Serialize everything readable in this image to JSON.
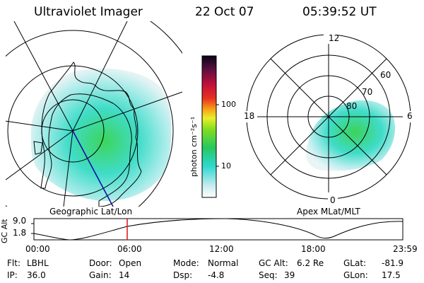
{
  "header": {
    "title": "Ultraviolet Imager",
    "date": "22 Oct 07",
    "time": "05:39:52 UT"
  },
  "colorbar": {
    "unit_label": "photon cm⁻²s⁻¹",
    "ticks": [
      "100",
      "10"
    ],
    "scale": "log"
  },
  "polar_plot": {
    "mlt_labels": [
      "12",
      "18",
      "6",
      "0"
    ],
    "lat_labels": [
      "60",
      "70",
      "80"
    ]
  },
  "labels": {
    "left_caption": "Geographic Lat/Lon",
    "right_caption": "Apex MLat/MLT"
  },
  "altitude_plot": {
    "axis_label": "GC Alt",
    "y_ticks": [
      "9.0",
      "1.8"
    ],
    "x_ticks": [
      "00:00",
      "06:00",
      "12:00",
      "18:00",
      "23:59"
    ],
    "marker_time": "05:39:52",
    "marker_color": "#e01010"
  },
  "info_panel": {
    "flt_label": "Flt:",
    "flt_value": "LBHL",
    "ip_label": "IP:",
    "ip_value": "36.0",
    "door_label": "Door:",
    "door_value": "Open",
    "gain_label": "Gain:",
    "gain_value": "14",
    "mode_label": "Mode:",
    "mode_value": "Normal",
    "dsp_label": "Dsp:",
    "dsp_value": "-4.8",
    "gcalt_label": "GC Alt:",
    "gcalt_value": "6.2 Re",
    "seq_label": "Seq:",
    "seq_value": "39",
    "glat_label": "GLat:",
    "glat_value": "-81.9",
    "glon_label": "GLon:",
    "glon_value": "17.5"
  },
  "colors": {
    "grid": "#000000",
    "aurora_low": "#dfeef2",
    "aurora_mid": "#3fe0d6",
    "aurora_high": "#37d24c"
  }
}
